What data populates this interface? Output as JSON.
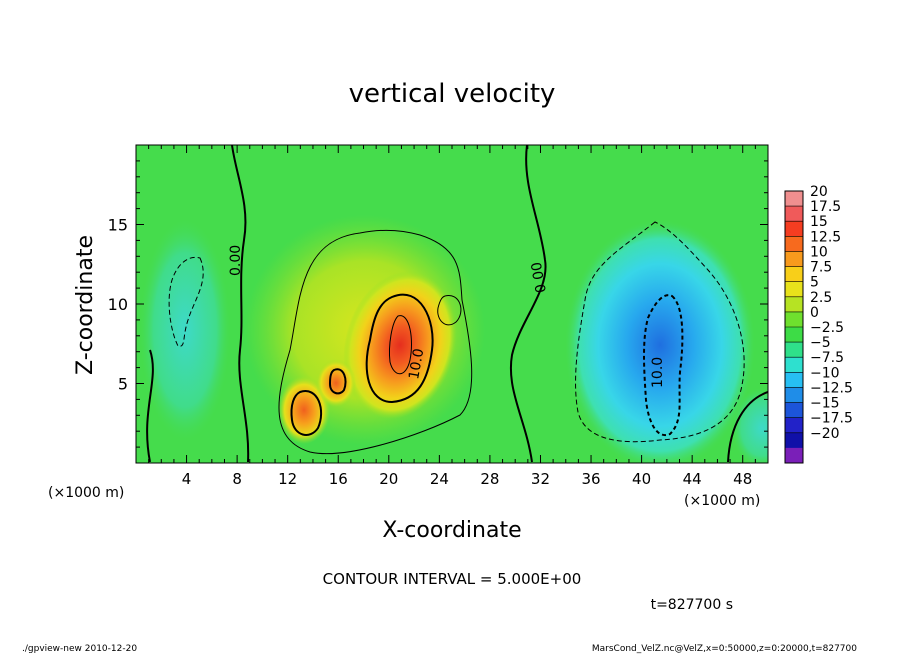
{
  "chart_data": {
    "type": "heatmap",
    "title": "vertical velocity",
    "xlabel": "X-coordinate",
    "ylabel": "Z-coordinate",
    "x_unit_left": "(×1000 m)",
    "x_unit_right": "(×1000 m)",
    "xlim": [
      0,
      50
    ],
    "ylim": [
      0,
      20
    ],
    "x_ticks": [
      4,
      8,
      12,
      16,
      20,
      24,
      28,
      32,
      36,
      40,
      44,
      48
    ],
    "y_ticks": [
      5,
      10,
      15
    ],
    "colorbar": {
      "levels": [
        20,
        17.5,
        15,
        12.5,
        10,
        7.5,
        5,
        2.5,
        0,
        -2.5,
        -5,
        -7.5,
        -10,
        -12.5,
        -15,
        -17.5,
        -20
      ],
      "labels": [
        "20",
        "17.5",
        "15",
        "12.5",
        "10",
        "7.5",
        "5",
        "2.5",
        "0",
        "−2.5",
        "−5",
        "−7.5",
        "−10",
        "−12.5",
        "−15",
        "−17.5",
        "−20"
      ],
      "colors": [
        "#f08f8f",
        "#f05a5a",
        "#f53d21",
        "#f76a1e",
        "#f89a1d",
        "#f8cf19",
        "#e8e21b",
        "#b6e323",
        "#6fe02e",
        "#3ddc46",
        "#2fe08a",
        "#2ee0cf",
        "#27bff3",
        "#1f8de8",
        "#1c55da",
        "#2222c8",
        "#1010a8",
        "#7a1fb8"
      ]
    },
    "contour_labels": [
      "0.00",
      "0.00",
      "10.0",
      "10.0"
    ],
    "contour_interval_text": "CONTOUR INTERVAL = 5.000E+00",
    "features": [
      {
        "kind": "updraft",
        "x": 20.8,
        "z": 8.0,
        "value": 16
      },
      {
        "kind": "updraft",
        "x": 13.2,
        "z": 3.5,
        "value": 13
      },
      {
        "kind": "updraft",
        "x": 15.8,
        "z": 5.3,
        "value": 12
      },
      {
        "kind": "downdraft",
        "x": 41.5,
        "z": 6.5,
        "value": -13
      },
      {
        "kind": "weak-downdraft",
        "x": 4.0,
        "z": 10.0,
        "value": -2
      }
    ]
  },
  "footer": {
    "time": "t=827700 s",
    "left": "./gpview-new  2010-12-20",
    "right": "MarsCond_VelZ.nc@VelZ,x=0:50000,z=0:20000,t=827700"
  }
}
